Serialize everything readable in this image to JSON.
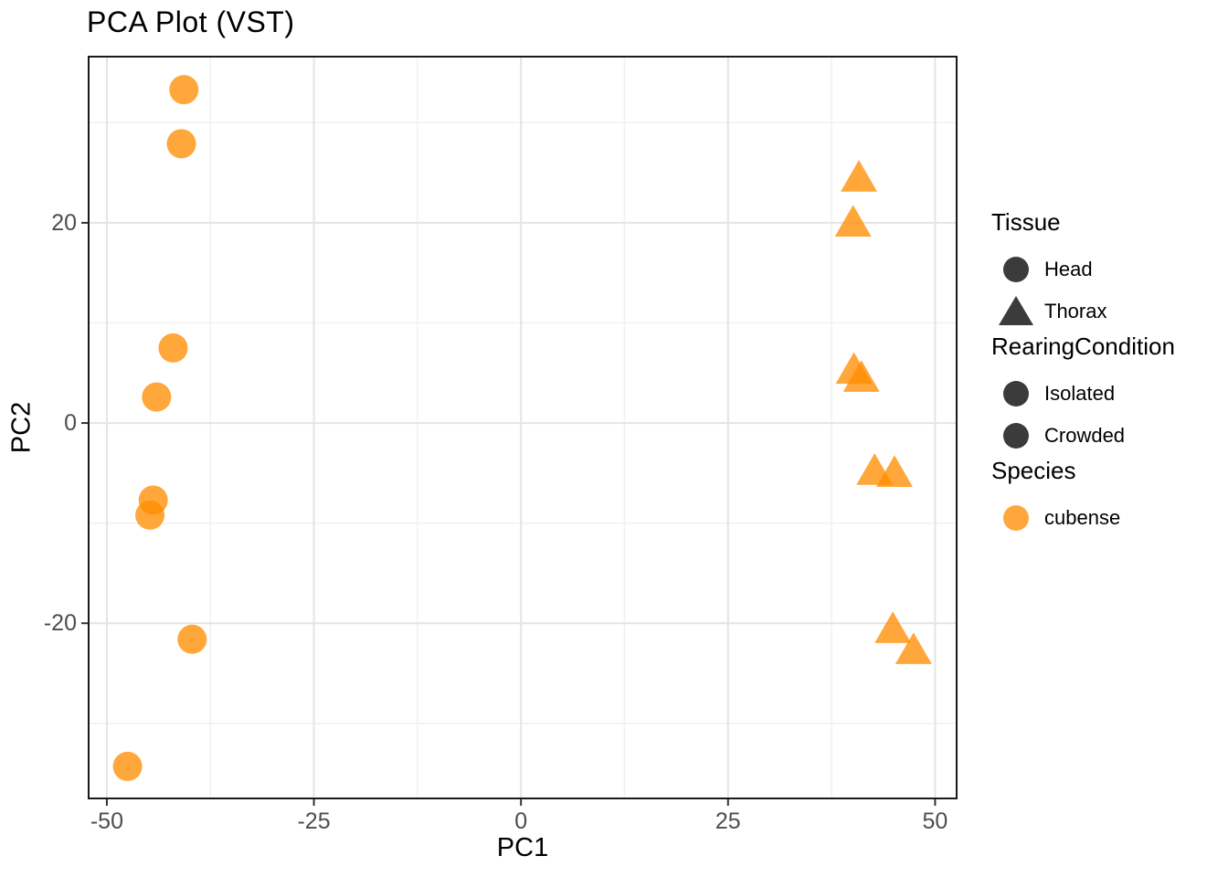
{
  "title": "PCA Plot (VST)",
  "colors": {
    "point_fill": "#FF8C00",
    "point_alpha": 0.77,
    "point_rendered_single": "#FFA63B",
    "legend_dark_key": "#3B3B3B",
    "grid_major": "#E4E4E4",
    "grid_minor": "#F1F1F1",
    "panel_border": "#1A1A1A",
    "tick_mark": "#333333",
    "tick_label": "#4D4D4D",
    "panel_background": "#FFFFFF"
  },
  "chart_data": {
    "type": "scatter",
    "title": "PCA Plot (VST)",
    "xlabel": "PC1",
    "ylabel": "PC2",
    "xlim": [
      -52.2,
      52.6
    ],
    "ylim": [
      -37.5,
      36.6
    ],
    "x_major_ticks": [
      -50,
      -25,
      0,
      25,
      50
    ],
    "y_major_ticks": [
      -20,
      0,
      20
    ],
    "x_minor_ticks": [
      -37.5,
      -12.5,
      12.5,
      37.5
    ],
    "y_minor_ticks": [
      -30,
      -10,
      10,
      30
    ],
    "grid": true,
    "legend_position": "right",
    "series": [
      {
        "name": "Head",
        "marker": "circle",
        "species": "cubense",
        "points": [
          [
            -40.7,
            33.3
          ],
          [
            -41.0,
            27.9
          ],
          [
            -42.0,
            7.5
          ],
          [
            -44.0,
            2.6
          ],
          [
            -44.4,
            -7.7
          ],
          [
            -44.8,
            -9.2
          ],
          [
            -39.7,
            -21.6
          ],
          [
            -47.5,
            -34.3
          ]
        ]
      },
      {
        "name": "Thorax",
        "marker": "triangle",
        "species": "cubense",
        "points": [
          [
            40.8,
            24.7
          ],
          [
            40.1,
            20.2
          ],
          [
            40.2,
            5.5
          ],
          [
            41.1,
            4.7
          ],
          [
            42.7,
            -4.6
          ],
          [
            45.1,
            -4.8
          ],
          [
            44.9,
            -20.4
          ],
          [
            47.4,
            -22.5
          ]
        ]
      }
    ],
    "legends": [
      {
        "title": "Tissue",
        "entries": [
          {
            "label": "Head",
            "marker": "circle",
            "color": "#3B3B3B"
          },
          {
            "label": "Thorax",
            "marker": "triangle",
            "color": "#3B3B3B"
          }
        ]
      },
      {
        "title": "RearingCondition",
        "entries": [
          {
            "label": "Isolated",
            "marker": "circle",
            "color": "#3B3B3B"
          },
          {
            "label": "Crowded",
            "marker": "circle",
            "color": "#3B3B3B"
          }
        ]
      },
      {
        "title": "Species",
        "entries": [
          {
            "label": "cubense",
            "marker": "circle",
            "color": "#FFA63B"
          }
        ]
      }
    ]
  }
}
